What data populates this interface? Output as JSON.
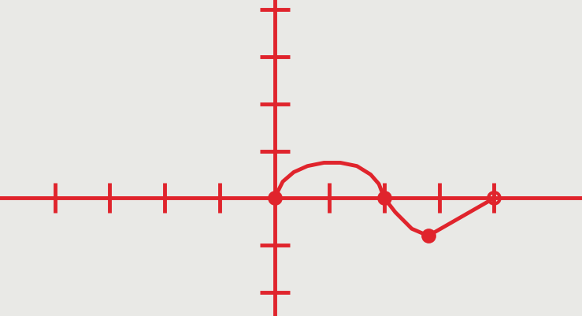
{
  "chart_data": {
    "type": "line",
    "xlim": [
      -5,
      5.6
    ],
    "ylim": [
      -2.5,
      4.2
    ],
    "xticks": [
      -4,
      -3,
      -2,
      -1,
      1,
      2,
      3,
      4
    ],
    "yticks": [
      -2,
      -1,
      1,
      2,
      3,
      4
    ],
    "tick_labels": false,
    "grid": false,
    "series": [
      {
        "type": "line",
        "color": "#e0242c",
        "line_style": "solid",
        "x": [
          0,
          0.15,
          0.35,
          0.6,
          0.9,
          1.2,
          1.5,
          1.75,
          1.9,
          2,
          2.2,
          2.5,
          2.8,
          3.4,
          4
        ],
        "values": [
          0,
          0.35,
          0.55,
          0.68,
          0.75,
          0.75,
          0.68,
          0.5,
          0.3,
          0,
          -0.3,
          -0.65,
          -0.8,
          -0.4,
          0
        ]
      },
      {
        "type": "scatter",
        "color": "#e0242c",
        "marker": "filled_circle",
        "x": [
          0,
          2,
          2.8
        ],
        "values": [
          0,
          0,
          -0.8
        ]
      },
      {
        "type": "scatter",
        "color": "#e0242c",
        "marker": "open_circle",
        "x": [
          4
        ],
        "values": [
          0
        ]
      }
    ]
  }
}
